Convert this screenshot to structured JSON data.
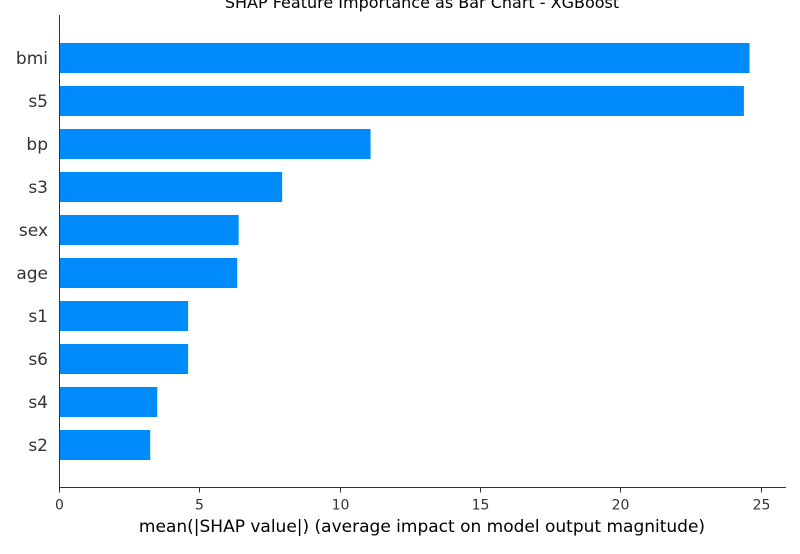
{
  "chart_data": {
    "type": "bar",
    "orientation": "horizontal",
    "title": "SHAP Feature Importance as Bar Chart - XGBoost",
    "xlabel": "mean(|SHAP value|) (average impact on model output magnitude)",
    "ylabel": "",
    "categories": [
      "bmi",
      "s5",
      "bp",
      "s3",
      "sex",
      "age",
      "s1",
      "s6",
      "s4",
      "s2"
    ],
    "values": [
      24.6,
      24.4,
      11.1,
      7.95,
      6.4,
      6.35,
      4.6,
      4.6,
      3.5,
      3.25
    ],
    "xlim": [
      0,
      25.9
    ],
    "xticks": [
      0,
      5,
      10,
      15,
      20,
      25
    ],
    "grid": false,
    "bar_color": "#008bfb",
    "axis_color": "#333333",
    "text_color": "#333333"
  }
}
